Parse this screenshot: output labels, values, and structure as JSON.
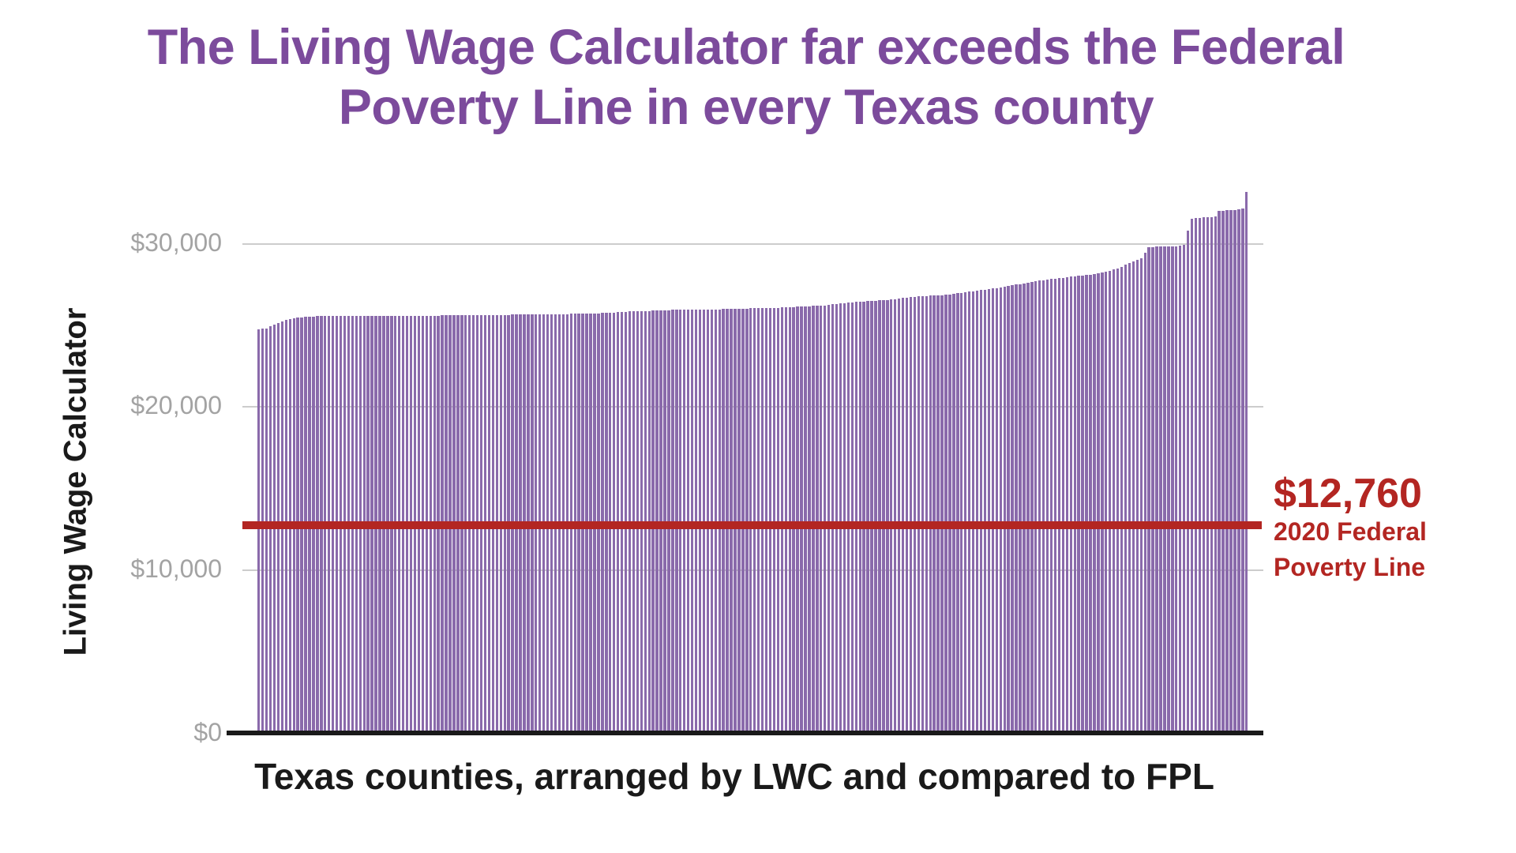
{
  "colors": {
    "title_purple": "#7c4b9c",
    "bar_purple": "#8a6aab",
    "fpl_red": "#b32622",
    "tick_gray": "#a3a3a3",
    "grid_gray": "#cccccc",
    "axis_black": "#1a1a1a"
  },
  "title": {
    "line1": "The Living Wage Calculator far exceeds the Federal",
    "line2": "Poverty Line in every Texas county"
  },
  "annotation": {
    "value": "$12,760",
    "line1": "2020 Federal",
    "line2": "Poverty Line"
  },
  "chart_data": {
    "type": "bar",
    "title": "The Living Wage Calculator far exceeds the Federal Poverty Line in every Texas county",
    "xlabel": "Texas counties, arranged by LWC and compared to FPL",
    "ylabel": "Living Wage Calculator",
    "x_description": "254 Texas counties sorted ascending by Living Wage Calculator annual value",
    "ylim": [
      0,
      34000
    ],
    "grid": "horizontal",
    "legend": "none",
    "bar_color": "#8a6aab",
    "y_ticks": [
      {
        "label": "$0",
        "value": 0
      },
      {
        "label": "$10,000",
        "value": 10000
      },
      {
        "label": "$20,000",
        "value": 20000
      },
      {
        "label": "$30,000",
        "value": 30000
      }
    ],
    "reference_line": {
      "value": 12760,
      "label": "$12,760",
      "caption": "2020 Federal Poverty Line",
      "color": "#b32622"
    },
    "values": [
      24800,
      24820,
      24840,
      24950,
      25050,
      25150,
      25250,
      25350,
      25430,
      25470,
      25500,
      25520,
      25540,
      25560,
      25570,
      25580,
      25590,
      25600,
      25605,
      25605,
      25605,
      25605,
      25605,
      25605,
      25605,
      25605,
      25605,
      25605,
      25605,
      25605,
      25610,
      25610,
      25610,
      25610,
      25610,
      25610,
      25610,
      25610,
      25610,
      25610,
      25615,
      25615,
      25615,
      25615,
      25615,
      25615,
      25620,
      25630,
      25630,
      25630,
      25630,
      25630,
      25630,
      25645,
      25645,
      25645,
      25645,
      25645,
      25645,
      25660,
      25660,
      25660,
      25660,
      25660,
      25660,
      25675,
      25675,
      25675,
      25675,
      25675,
      25695,
      25695,
      25695,
      25695,
      25695,
      25695,
      25710,
      25710,
      25710,
      25710,
      25730,
      25730,
      25730,
      25730,
      25755,
      25755,
      25755,
      25755,
      25780,
      25780,
      25805,
      25805,
      25830,
      25830,
      25855,
      25875,
      25875,
      25875,
      25900,
      25900,
      25900,
      25930,
      25930,
      25930,
      25955,
      25955,
      25975,
      25975,
      25985,
      25985,
      25985,
      25985,
      25995,
      25995,
      25995,
      25995,
      26005,
      26005,
      26005,
      26015,
      26015,
      26015,
      26030,
      26030,
      26045,
      26045,
      26065,
      26065,
      26080,
      26080,
      26080,
      26100,
      26100,
      26100,
      26120,
      26120,
      26145,
      26145,
      26165,
      26165,
      26190,
      26190,
      26220,
      26220,
      26250,
      26250,
      26280,
      26305,
      26330,
      26355,
      26380,
      26405,
      26430,
      26450,
      26470,
      26490,
      26510,
      26530,
      26545,
      26560,
      26575,
      26590,
      26615,
      26640,
      26665,
      26695,
      26720,
      26750,
      26780,
      26795,
      26810,
      26825,
      26840,
      26855,
      26870,
      26885,
      26900,
      26930,
      26960,
      26995,
      27030,
      27060,
      27090,
      27120,
      27150,
      27185,
      27215,
      27245,
      27280,
      27320,
      27360,
      27400,
      27440,
      27480,
      27520,
      27560,
      27600,
      27640,
      27685,
      27725,
      27770,
      27800,
      27830,
      27860,
      27890,
      27920,
      27950,
      27980,
      28005,
      28030,
      28055,
      28080,
      28100,
      28140,
      28180,
      28220,
      28260,
      28300,
      28350,
      28440,
      28530,
      28630,
      28730,
      28830,
      28930,
      29030,
      29130,
      29500,
      29830,
      29840,
      29850,
      29855,
      29860,
      29865,
      29870,
      29880,
      29920,
      29960,
      30850,
      31550,
      31600,
      31630,
      31650,
      31670,
      31685,
      31700,
      32050,
      32070,
      32090,
      32105,
      32120,
      32150,
      32200,
      33200
    ]
  }
}
